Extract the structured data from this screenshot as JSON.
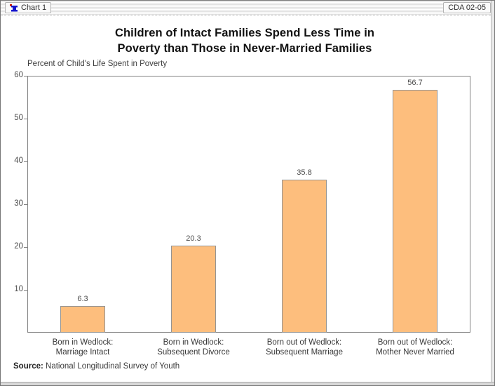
{
  "window": {
    "titlebar_left": "Chart 1",
    "titlebar_right": "CDA 02-05"
  },
  "chart_data": {
    "type": "bar",
    "title": "Children of Intact Families Spend Less Time in Poverty than Those in Never-Married Families",
    "title_lines": [
      "Children of Intact Families Spend Less Time in",
      "Poverty than Those in Never-Married Families"
    ],
    "axis_unit_label": "Percent of Child's Life Spent in Poverty",
    "categories": [
      [
        "Born in Wedlock:",
        "Marriage Intact"
      ],
      [
        "Born in Wedlock:",
        "Subsequent Divorce"
      ],
      [
        "Born out of Wedlock:",
        "Subsequent Marriage"
      ],
      [
        "Born out of Wedlock:",
        "Mother Never Married"
      ]
    ],
    "values": [
      6.3,
      20.3,
      35.8,
      56.7
    ],
    "ylim": [
      0,
      60
    ],
    "yticks": [
      10,
      20,
      30,
      40,
      50,
      60
    ],
    "grid": false,
    "legend": false,
    "colors": {
      "bar_fill": "#FDBE7D",
      "bar_border": "#949494",
      "plot_border": "#828282"
    }
  },
  "source": {
    "label": "Source:",
    "text": " National Longitudinal Survey of Youth"
  }
}
